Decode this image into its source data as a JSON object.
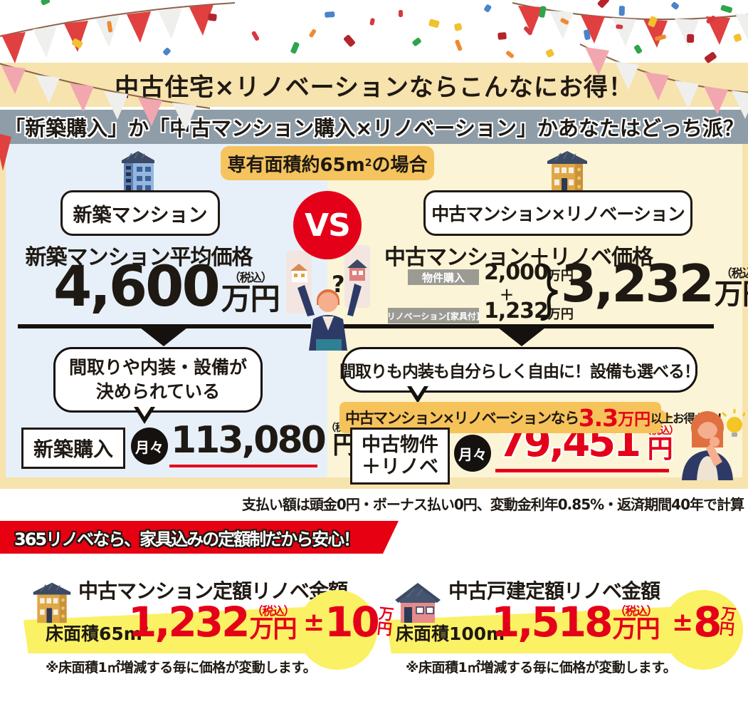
{
  "header": {
    "title": "中古住宅×リノベーションならこんなにお得！",
    "subtitle": "「新築購入」か「中古マンション購入×リノベーション」かあなたはどっち派？"
  },
  "area_badge": {
    "pre": "専有面積約65m",
    "sup": "2",
    "post": "の場合"
  },
  "vs_label": "VS",
  "question_mark": "?",
  "new_side": {
    "label": "新築マンション",
    "price_title": "新築マンション平均価格",
    "price_value": "4,600",
    "price_unit": "万円",
    "tax_note": "（税込）",
    "bubble_line1": "間取りや内装・設備が",
    "bubble_line2": "決められている",
    "plan_label": "新築購入",
    "monthly_prefix": "月々",
    "monthly_value": "113,080",
    "monthly_unit": "円",
    "monthly_tax": "（税込）"
  },
  "used_side": {
    "label": "中古マンション×リノベーション",
    "price_title": "中古マンション＋リノベ価格",
    "item1_label": "物件購入",
    "item1_value": "2,000",
    "item1_unit": "万円",
    "plus_sign": "＋",
    "item2_label": "リノベーション[家具付]",
    "item2_value": "1,232",
    "item2_unit": "万円",
    "total_value": "3,232",
    "total_unit": "万円",
    "tax_note": "（税込）",
    "bubble": "間取りも内装も自分らしく自由に！設備も選べる！",
    "deal_pre": "中古マンション×リノベーションなら",
    "deal_value": "3.3",
    "deal_unit": "万円",
    "deal_post": "以上お得だわ！",
    "plan_label_line1": "中古物件",
    "plan_label_line2": "＋リノベ",
    "monthly_prefix": "月々",
    "monthly_value": "79,451",
    "monthly_unit": "円",
    "monthly_tax": "（税込）"
  },
  "footnote": "支払い額は頭金0円・ボーナス払い0円、変動金利年0.85%・返済期間40年で計算",
  "ribbon": "365リノベなら、家具込みの定額制だから安心！",
  "cards": [
    {
      "title": "中古マンション定額リノベ金額",
      "area_pre": "床面積65m",
      "area_sup": "2",
      "price_value": "1,232",
      "price_unit": "万円",
      "tax_note": "（税込）",
      "pm_sign": "±",
      "pm_value": "10",
      "pm_unit_top": "万",
      "pm_unit_bottom": "円",
      "note": "※床面積1㎡増減する毎に価格が変動します。"
    },
    {
      "title": "中古戸建定額リノベ金額",
      "area_pre": "床面積100m",
      "area_sup": "2",
      "price_value": "1,518",
      "price_unit": "万円",
      "tax_note": "（税込）",
      "pm_sign": "±",
      "pm_value": "8",
      "pm_unit_top": "万",
      "pm_unit_bottom": "円",
      "note": "※床面積1㎡増減する毎に価格が変動します。"
    }
  ],
  "colors": {
    "accent_red": "#E50019",
    "ribbon_red": "#E60012",
    "cream": "#F7E3AE",
    "gray_bar": "#8E9DA8",
    "panel_blue": "#E7F0F8",
    "panel_yellow": "#FBF4D6",
    "badge_orange": "#F5C45E",
    "band_yellow": "#FAF164"
  }
}
